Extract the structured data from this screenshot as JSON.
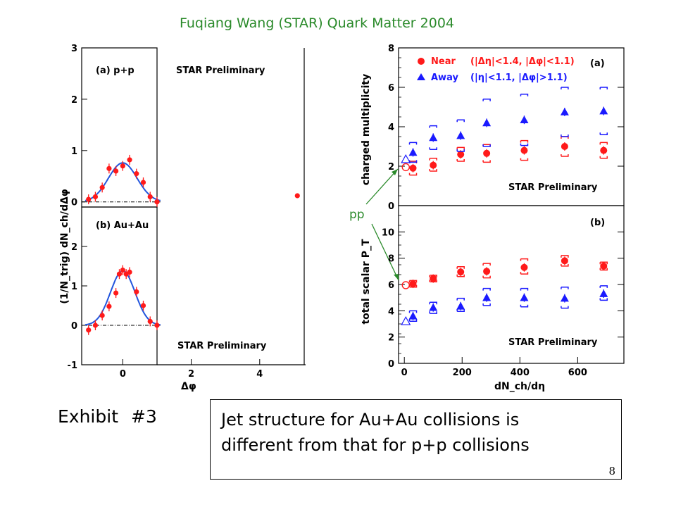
{
  "header": "Fuqiang Wang (STAR) Quark Matter 2004",
  "exhibit": {
    "label": "Exhibit",
    "number": "#3"
  },
  "conclusion": {
    "line1": "Jet structure for Au+Au collisions is",
    "line2": "different from that for p+p collisions"
  },
  "page_number": "8",
  "annotation": "pp",
  "colors": {
    "header": "#2a8a2a",
    "near": "#ff1a1a",
    "away": "#1a1aff",
    "fit_blue": "#2255dd",
    "arrow": "#2a8a2a"
  },
  "chart_data": [
    {
      "type": "scatter",
      "panel": "(a) p+p",
      "watermark": "STAR Preliminary",
      "xlabel": "Δφ",
      "ylabel": "(1/N_trig) dN_ch/dΔφ",
      "xlim": [
        -1.2,
        5.3
      ],
      "ylim": [
        -0.1,
        3
      ],
      "yticks": [
        "0",
        "1",
        "2",
        "3"
      ],
      "series": [
        {
          "x": [
            -1.0,
            -0.8,
            -0.6,
            -0.4,
            -0.2,
            0.0,
            0.2,
            0.4,
            0.6,
            0.8,
            1.0
          ],
          "y": [
            0.05,
            0.1,
            0.28,
            0.65,
            0.6,
            0.7,
            0.82,
            0.55,
            0.38,
            0.1,
            0.0
          ]
        }
      ],
      "fit": {
        "amplitude": 0.76,
        "sigma": 0.42,
        "offset": 0.0
      },
      "extra_point": {
        "x": 5.1,
        "y": 0.12
      }
    },
    {
      "type": "scatter",
      "panel": "(b) Au+Au",
      "watermark": "STAR Preliminary",
      "xlabel": "Δφ",
      "xlim": [
        -1.2,
        5.3
      ],
      "ylim": [
        -1,
        3
      ],
      "yticks": [
        "-1",
        "0",
        "1",
        "2"
      ],
      "xticks": [
        "0",
        "2",
        "4"
      ],
      "series": [
        {
          "x": [
            -1.0,
            -0.8,
            -0.6,
            -0.4,
            -0.2,
            -0.1,
            0.0,
            0.1,
            0.2,
            0.4,
            0.6,
            0.8,
            1.0
          ],
          "y": [
            -0.12,
            0.0,
            0.25,
            0.48,
            0.82,
            1.3,
            1.4,
            1.3,
            1.35,
            0.85,
            0.5,
            0.1,
            0.0
          ]
        }
      ],
      "fit": {
        "amplitude": 1.38,
        "sigma": 0.36,
        "offset": 0.0
      }
    },
    {
      "type": "scatter",
      "panel": "(a)",
      "watermark": "STAR Preliminary",
      "ylabel": "charged multiplicity",
      "xlim": [
        -20,
        760
      ],
      "ylim": [
        0,
        8
      ],
      "yticks": [
        "0",
        "2",
        "4",
        "6",
        "8"
      ],
      "series": [
        {
          "name": "Near",
          "legend_detail": "(|Δη|<1.4, |Δφ|<1.1)",
          "x": [
            30,
            100,
            195,
            285,
            415,
            555,
            690
          ],
          "y": [
            1.9,
            2.05,
            2.6,
            2.65,
            2.8,
            3.0,
            2.8
          ],
          "sys_low": [
            1.55,
            1.75,
            2.25,
            2.2,
            2.3,
            2.5,
            2.4
          ],
          "sys_high": [
            2.25,
            2.4,
            2.95,
            3.1,
            3.3,
            3.5,
            3.2
          ],
          "pp_x": 5,
          "pp_y": 1.95
        },
        {
          "name": "Away",
          "legend_detail": "(|η|<1.1, |Δφ|>1.1)",
          "x": [
            30,
            100,
            195,
            285,
            415,
            555,
            690
          ],
          "y": [
            2.7,
            3.45,
            3.55,
            4.2,
            4.35,
            4.75,
            4.8
          ],
          "sys_low": [
            2.2,
            2.85,
            2.75,
            3.0,
            3.05,
            3.5,
            3.6
          ],
          "sys_high": [
            3.2,
            4.05,
            4.35,
            5.4,
            5.65,
            6.0,
            6.0
          ],
          "pp_x": 5,
          "pp_y": 2.35
        }
      ]
    },
    {
      "type": "scatter",
      "panel": "(b)",
      "watermark": "STAR Preliminary",
      "xlabel": "dN_ch/dη",
      "ylabel": "total scalar P_T",
      "xlim": [
        -20,
        760
      ],
      "ylim": [
        0,
        12
      ],
      "yticks": [
        "0",
        "2",
        "4",
        "6",
        "8",
        "10"
      ],
      "xticks": [
        "0",
        "200",
        "400",
        "600"
      ],
      "series": [
        {
          "name": "Near",
          "x": [
            30,
            100,
            195,
            285,
            415,
            555,
            690
          ],
          "y": [
            6.05,
            6.45,
            6.95,
            7.0,
            7.3,
            7.8,
            7.4
          ],
          "sys_low": [
            5.8,
            6.2,
            6.6,
            6.5,
            6.8,
            7.4,
            7.1
          ],
          "sys_high": [
            6.3,
            6.7,
            7.35,
            7.6,
            7.95,
            8.2,
            7.7
          ],
          "pp_x": 5,
          "pp_y": 5.95
        },
        {
          "name": "Away",
          "x": [
            30,
            100,
            195,
            285,
            415,
            555,
            690
          ],
          "y": [
            3.6,
            4.25,
            4.35,
            5.0,
            5.0,
            4.95,
            5.3
          ],
          "sys_low": [
            3.2,
            3.8,
            3.95,
            4.4,
            4.3,
            4.2,
            4.8
          ],
          "sys_high": [
            4.0,
            4.65,
            4.95,
            5.7,
            5.7,
            5.8,
            5.9
          ],
          "pp_x": 5,
          "pp_y": 3.2
        }
      ]
    }
  ]
}
